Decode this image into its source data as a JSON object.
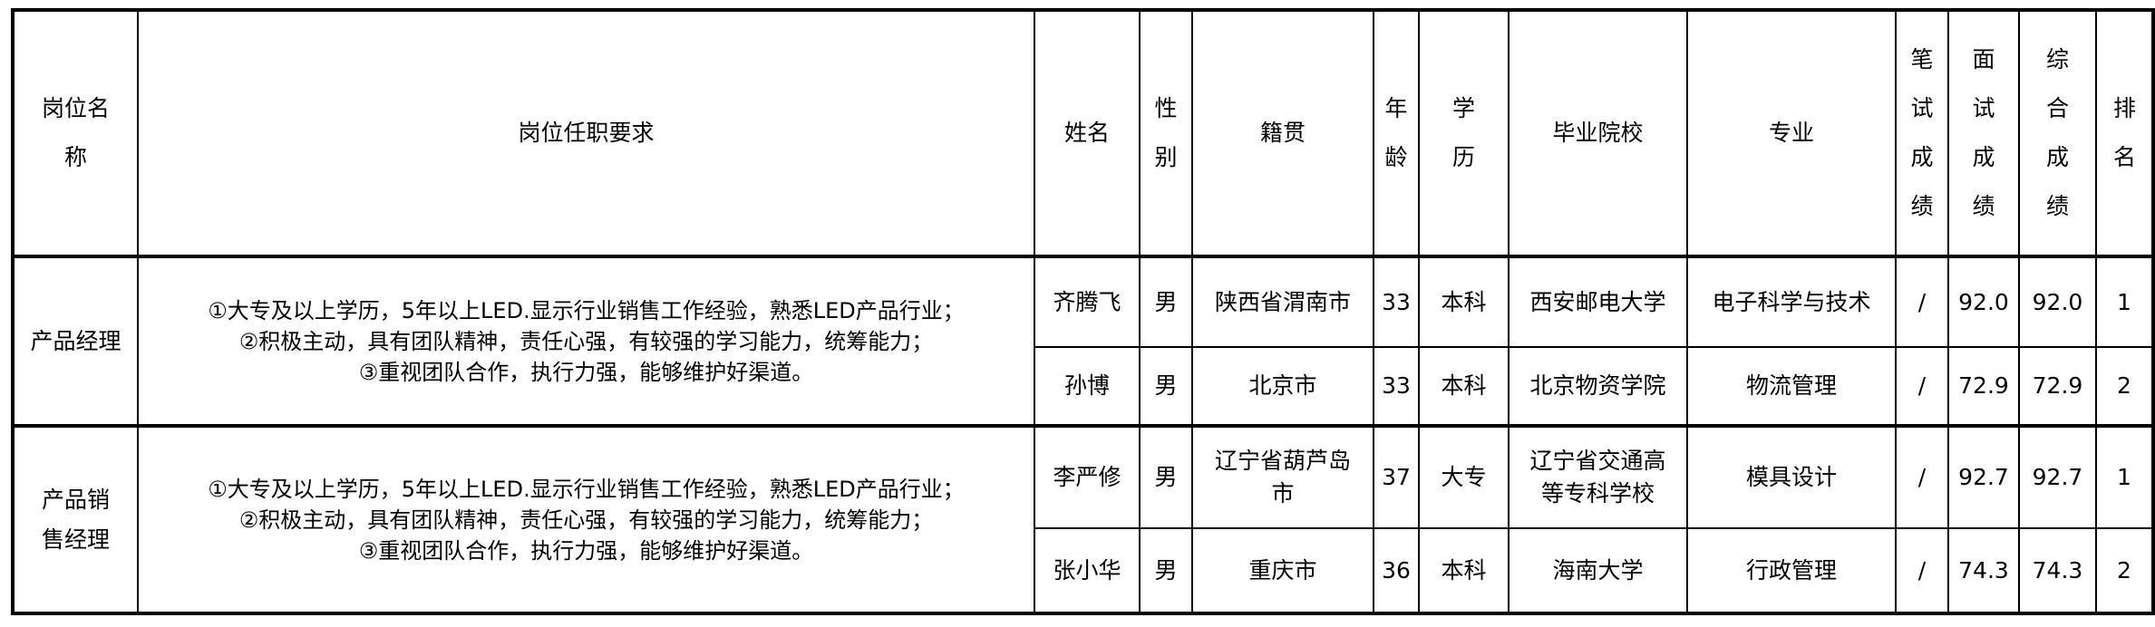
{
  "headers": {
    "position": "岗位名称",
    "requirements": "岗位任职要求",
    "name": "姓名",
    "gender": "性别",
    "hometown": "籍贯",
    "age": "年龄",
    "education": "学历",
    "school": "毕业院校",
    "major": "专业",
    "written": "笔试成绩",
    "interview": "面试成绩",
    "total": "综合成绩",
    "rank": "排名"
  },
  "groups": [
    {
      "position": "产品经理",
      "requirements": [
        "①大专及以上学历，5年以上LED.显示行业销售工作经验，熟悉LED产品行业；",
        "②积极主动，具有团队精神，责任心强，有较强的学习能力，统筹能力；",
        "③重视团队合作，执行力强，能够维护好渠道。"
      ],
      "candidates": [
        {
          "name": "齐腾飞",
          "gender": "男",
          "hometown": "陕西省渭南市",
          "age": "33",
          "education": "本科",
          "school": "西安邮电大学",
          "major": "电子科学与技术",
          "written": "/",
          "interview": "92.0",
          "total": "92.0",
          "rank": "1"
        },
        {
          "name": "孙博",
          "gender": "男",
          "hometown": "北京市",
          "age": "33",
          "education": "本科",
          "school": "北京物资学院",
          "major": "物流管理",
          "written": "/",
          "interview": "72.9",
          "total": "72.9",
          "rank": "2"
        }
      ]
    },
    {
      "position": "产品销售经理",
      "requirements": [
        "①大专及以上学历，5年以上LED.显示行业销售工作经验，熟悉LED产品行业；",
        "②积极主动，具有团队精神，责任心强，有较强的学习能力，统筹能力；",
        "③重视团队合作，执行力强，能够维护好渠道。"
      ],
      "candidates": [
        {
          "name": "李严修",
          "gender": "男",
          "hometown": "辽宁省葫芦岛市",
          "age": "37",
          "education": "大专",
          "school": "辽宁省交通高等专科学校",
          "major": "模具设计",
          "written": "/",
          "interview": "92.7",
          "total": "92.7",
          "rank": "1"
        },
        {
          "name": "张小华",
          "gender": "男",
          "hometown": "重庆市",
          "age": "36",
          "education": "本科",
          "school": "海南大学",
          "major": "行政管理",
          "written": "/",
          "interview": "74.3",
          "total": "74.3",
          "rank": "2"
        }
      ]
    }
  ]
}
